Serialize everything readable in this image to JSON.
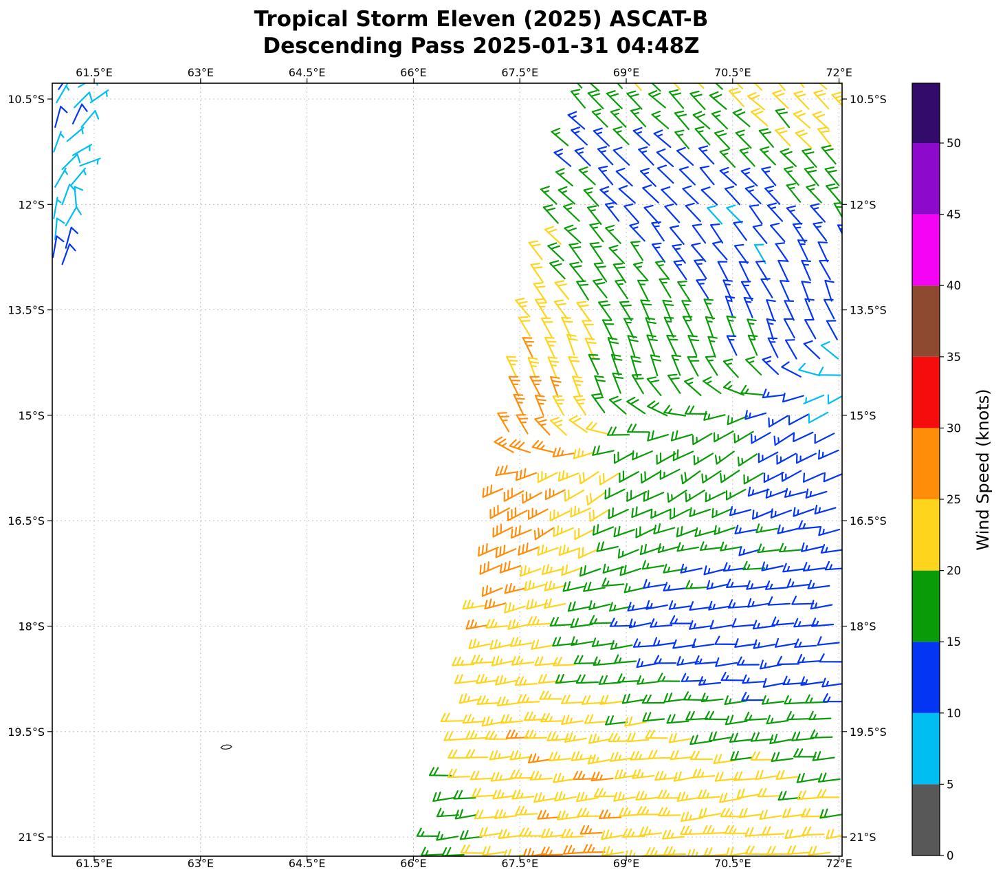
{
  "title": {
    "line1": "Tropical Storm Eleven (2025) ASCAT-B",
    "line2": "Descending Pass 2025-01-31 04:48Z"
  },
  "chart_data": {
    "type": "wind_barbs_map",
    "satellite": "ASCAT-B",
    "pass_type": "Descending",
    "pass_time": "2025-01-31 04:48Z",
    "storm_name": "Tropical Storm Eleven (2025)",
    "axes": {
      "lon_ticks": [
        {
          "value": 61.5,
          "label": "61.5°E"
        },
        {
          "value": 63.0,
          "label": "63°E"
        },
        {
          "value": 64.5,
          "label": "64.5°E"
        },
        {
          "value": 66.0,
          "label": "66°E"
        },
        {
          "value": 67.5,
          "label": "67.5°E"
        },
        {
          "value": 69.0,
          "label": "69°E"
        },
        {
          "value": 70.5,
          "label": "70.5°E"
        },
        {
          "value": 72.0,
          "label": "72°E"
        }
      ],
      "lat_ticks": [
        {
          "value": -10.5,
          "label": "10.5°S"
        },
        {
          "value": -12.0,
          "label": "12°S"
        },
        {
          "value": -13.5,
          "label": "13.5°S"
        },
        {
          "value": -15.0,
          "label": "15°S"
        },
        {
          "value": -16.5,
          "label": "16.5°S"
        },
        {
          "value": -18.0,
          "label": "18°S"
        },
        {
          "value": -19.5,
          "label": "19.5°S"
        },
        {
          "value": -21.0,
          "label": "21°S"
        }
      ],
      "lon_range": [
        60.91,
        72.05
      ],
      "lat_range": [
        -21.27,
        -10.28
      ],
      "grid": true
    },
    "colorbar": {
      "label": "Wind Speed (knots)",
      "units": "knots",
      "tick_levels": [
        0,
        5,
        10,
        15,
        20,
        25,
        30,
        35,
        40,
        45,
        50
      ],
      "band_colors": [
        "#585858",
        "#00bdf2",
        "#0435f2",
        "#0a9c08",
        "#ffd41c",
        "#ff8d0a",
        "#f60c0c",
        "#8d4a30",
        "#f503f5",
        "#8d09cc",
        "#330b6b"
      ],
      "top_extension_kt": 4.2
    },
    "island": {
      "lon": 63.36,
      "lat": -19.72,
      "outline_dlonlat": [
        [
          -0.075,
          -0.008
        ],
        [
          -0.045,
          0.016
        ],
        [
          0.005,
          0.03
        ],
        [
          0.055,
          0.026
        ],
        [
          0.078,
          0.004
        ],
        [
          0.05,
          -0.02
        ],
        [
          -0.002,
          -0.03
        ],
        [
          -0.05,
          -0.026
        ]
      ]
    },
    "wind_field": {
      "description": "ASCAT scatterometer wind barbs; NW-N flow north of a confluence/trough line, SW-W monsoon flow south of it; lightest winds (blue/cyan) along the confluence, strongest (orange 25-30 kt) near the storm center at the western swath edge.",
      "base_speed_kt": 18,
      "speed_clamp_kt": [
        6,
        28.5
      ],
      "speed_jitter_kt": 2.4,
      "az_jitter_deg": 12,
      "speed_anomalies": [
        {
          "lon": 67.35,
          "lat": -16.8,
          "amp": 9.5,
          "sx": 0.8,
          "sy": 1.5,
          "rot": 0
        },
        {
          "lon": 67.6,
          "lat": -20.5,
          "amp": 4.5,
          "sx": 1.5,
          "sy": 1.5,
          "rot": 0
        },
        {
          "lon": 67.75,
          "lat": -14.2,
          "amp": 4.2,
          "sx": 0.7,
          "sy": 1.8,
          "rot": 0
        },
        {
          "lon": 69.2,
          "lat": -10.3,
          "amp": 4.0,
          "sx": 0.8,
          "sy": 0.7,
          "rot": 0
        },
        {
          "lon": 71.95,
          "lat": -10.55,
          "amp": 4.5,
          "sx": 0.9,
          "sy": 0.8,
          "rot": 0
        },
        {
          "lon": 70.3,
          "lat": -12.3,
          "amp": -7.5,
          "sx": 2.4,
          "sy": 0.75,
          "rot": -33
        },
        {
          "lon": 71.85,
          "lat": -14.6,
          "amp": -6.0,
          "sx": 0.55,
          "sy": 0.5,
          "rot": 0
        },
        {
          "lon": 72.25,
          "lat": -16.1,
          "amp": -5.0,
          "sx": 1.2,
          "sy": 1.2,
          "rot": 0
        },
        {
          "lon": 70.4,
          "lat": -18.35,
          "amp": -6.5,
          "sx": 2.0,
          "sy": 0.75,
          "rot": -8
        },
        {
          "lon": 69.9,
          "lat": -20.9,
          "amp": 4.5,
          "sx": 1.8,
          "sy": 1.4,
          "rot": 0
        },
        {
          "lon": 66.5,
          "lat": -20.9,
          "amp": -5.0,
          "sx": 0.55,
          "sy": 0.8,
          "rot": 0
        }
      ],
      "flow_regimes": {
        "trough_line": {
          "lat_at_67_5": -15.6,
          "slope_per_lon": 0.28,
          "blend_width_deg": 0.35
        },
        "north": {
          "az_base": 315,
          "az_shift": 35,
          "shift_sigma": 1.8
        },
        "south": {
          "az_base": 265,
          "az_shift": -40,
          "shift_sigma": 1.6
        }
      },
      "swath": {
        "left_boundary": [
          [
            -10.28,
            68.37
          ],
          [
            -11.5,
            68.1
          ],
          [
            -12.5,
            67.9
          ],
          [
            -13.6,
            67.62
          ],
          [
            -14.5,
            67.42
          ],
          [
            -15.5,
            67.28
          ],
          [
            -16.5,
            67.22
          ],
          [
            -17.5,
            67.06
          ],
          [
            -18.0,
            66.95
          ],
          [
            -19.0,
            66.75
          ],
          [
            -20.0,
            66.55
          ],
          [
            -21.3,
            66.28
          ]
        ],
        "right_lon": 72.12,
        "lat_top": -10.36,
        "lat_step": 0.272,
        "lon_step": 0.287,
        "row_shift": 0.096
      },
      "cluster_barbs": [
        [
          61.0,
          -10.36,
          12,
          35
        ],
        [
          61.28,
          -10.33,
          8,
          60
        ],
        [
          60.97,
          -10.55,
          6,
          30
        ],
        [
          61.22,
          -10.62,
          8,
          45
        ],
        [
          61.45,
          -10.55,
          7,
          55
        ],
        [
          61.2,
          -10.85,
          11,
          25
        ],
        [
          60.95,
          -10.9,
          10,
          15
        ],
        [
          61.32,
          -10.9,
          8,
          40
        ],
        [
          61.12,
          -11.1,
          7,
          50
        ],
        [
          60.93,
          -11.25,
          5,
          20
        ],
        [
          61.2,
          -11.3,
          7,
          60
        ],
        [
          61.05,
          -11.5,
          8,
          45
        ],
        [
          61.3,
          -11.45,
          6,
          70
        ],
        [
          60.95,
          -11.75,
          6,
          30
        ],
        [
          61.18,
          -11.72,
          7,
          40
        ],
        [
          61.05,
          -12.0,
          8,
          20
        ],
        [
          61.25,
          -12.05,
          8,
          355
        ],
        [
          60.93,
          -12.2,
          7,
          10
        ],
        [
          61.1,
          -12.3,
          9,
          30
        ],
        [
          60.95,
          -12.5,
          8,
          5
        ],
        [
          61.1,
          -12.62,
          10,
          15
        ],
        [
          60.92,
          -12.75,
          12,
          10
        ],
        [
          61.05,
          -12.85,
          10,
          20
        ]
      ]
    }
  }
}
